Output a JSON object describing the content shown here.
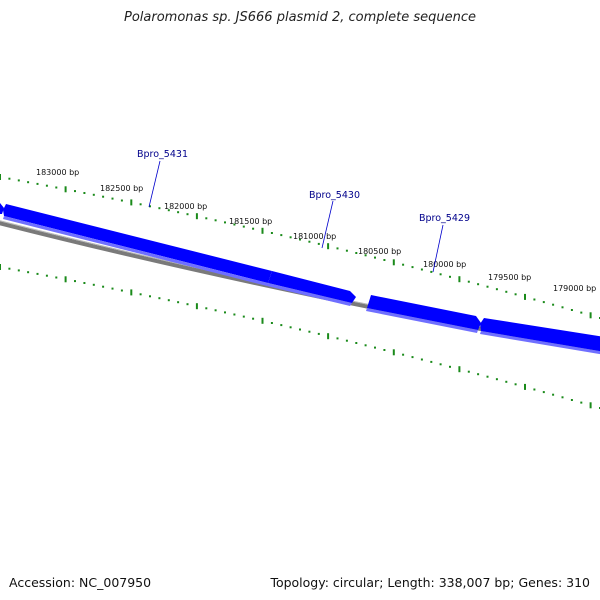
{
  "title": "Polaromonas sp. JS666 plasmid 2, complete sequence",
  "footer": {
    "accession_label": "Accession:",
    "accession": "NC_007950",
    "topology_label": "Topology:",
    "topology": "circular",
    "length_label": "Length:",
    "length": "338,007 bp",
    "genes_label": "Genes:",
    "genes": "310"
  },
  "colors": {
    "gene_fill": "#0000ff",
    "gene_light": "#6f6fff",
    "backbone": "#808080",
    "ticks": "#1a8a1a"
  },
  "scale": {
    "ticks": [
      "183000 bp",
      "182500 bp",
      "182000 bp",
      "181500 bp",
      "181000 bp",
      "180500 bp",
      "180000 bp",
      "179500 bp",
      "179000 bp"
    ]
  },
  "genes": [
    {
      "name": "Bpro_5431"
    },
    {
      "name": "Bpro_5430"
    },
    {
      "name": "Bpro_5429"
    }
  ]
}
